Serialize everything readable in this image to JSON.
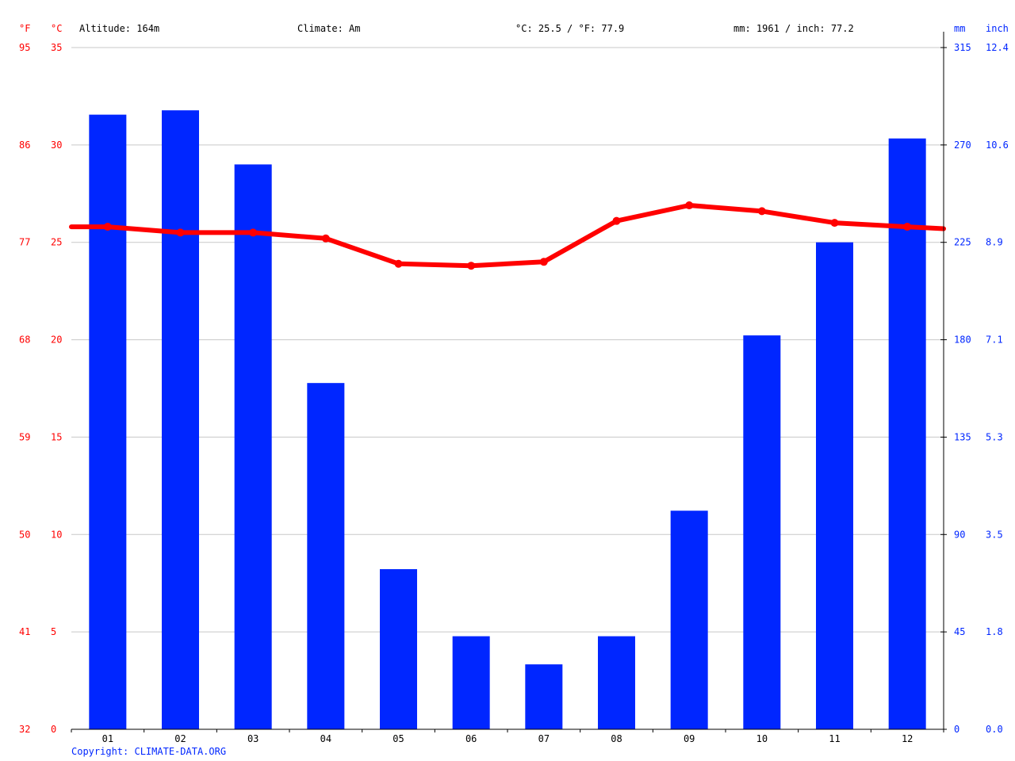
{
  "header": {
    "unit_f": "°F",
    "unit_c": "°C",
    "altitude": "Altitude: 164m",
    "climate": "Climate: Am",
    "temp_avg": "°C: 25.5 / °F: 77.9",
    "precip_total": "mm: 1961 / inch: 77.2",
    "unit_mm": "mm",
    "unit_inch": "inch"
  },
  "footer": {
    "copyright": "Copyright: CLIMATE-DATA.ORG"
  },
  "colors": {
    "temperature": "#ff0000",
    "precipitation": "#0026ff",
    "grid": "#c8c8c8",
    "axis": "#000000"
  },
  "chart_data": {
    "type": "bar",
    "categories": [
      "01",
      "02",
      "03",
      "04",
      "05",
      "06",
      "07",
      "08",
      "09",
      "10",
      "11",
      "12"
    ],
    "series": [
      {
        "type": "bar",
        "axis": "right",
        "unit": "mm",
        "values": [
          284,
          286,
          261,
          160,
          74,
          43,
          30,
          43,
          101,
          182,
          225,
          273
        ]
      },
      {
        "type": "line",
        "axis": "left",
        "unit": "°C",
        "values": [
          25.8,
          25.5,
          25.5,
          25.2,
          23.9,
          23.8,
          24.0,
          26.1,
          26.9,
          26.6,
          26.0,
          25.8
        ],
        "edge_start": 25.8,
        "edge_end": 25.7
      }
    ],
    "y_left_c": {
      "ticks": [
        "0",
        "5",
        "10",
        "15",
        "20",
        "25",
        "30",
        "35"
      ],
      "min": 0,
      "max": 35
    },
    "y_left_f": {
      "ticks": [
        "32",
        "41",
        "50",
        "59",
        "68",
        "77",
        "86",
        "95"
      ]
    },
    "y_right_mm": {
      "ticks": [
        "0",
        "45",
        "90",
        "135",
        "180",
        "225",
        "270",
        "315"
      ],
      "min": 0,
      "max": 315
    },
    "y_right_inch": {
      "ticks": [
        "0.0",
        "1.8",
        "3.5",
        "5.3",
        "7.1",
        "8.9",
        "10.6",
        "12.4"
      ]
    },
    "grid": true
  }
}
